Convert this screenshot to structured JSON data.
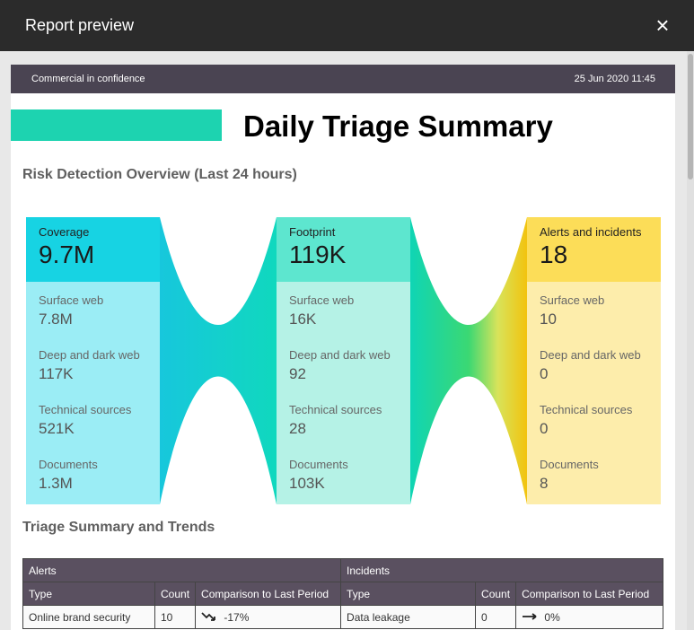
{
  "window": {
    "title": "Report preview",
    "close_icon": "close-icon"
  },
  "report": {
    "confidential": "Commercial in confidence",
    "date": "25 Jun 2020 11:45",
    "title": "Daily Triage Summary",
    "accent_color": "#1dd3b0"
  },
  "overview": {
    "title": "Risk Detection Overview (Last 24 hours)",
    "columns": [
      {
        "label": "Coverage",
        "value": "9.7M",
        "header_color": "#17d3e3",
        "body_color": "#9bedf5",
        "rows": [
          {
            "label": "Surface web",
            "value": "7.8M"
          },
          {
            "label": "Deep and dark web",
            "value": "117K"
          },
          {
            "label": "Technical sources",
            "value": "521K"
          },
          {
            "label": "Documents",
            "value": "1.3M"
          }
        ]
      },
      {
        "label": "Footprint",
        "value": "119K",
        "header_color": "#5de6cf",
        "body_color": "#b5f2e6",
        "rows": [
          {
            "label": "Surface web",
            "value": "16K"
          },
          {
            "label": "Deep and dark web",
            "value": "92"
          },
          {
            "label": "Technical sources",
            "value": "28"
          },
          {
            "label": "Documents",
            "value": "103K"
          }
        ]
      },
      {
        "label": "Alerts and incidents",
        "value": "18",
        "header_color": "#fcdd58",
        "body_color": "#fdedab",
        "rows": [
          {
            "label": "Surface web",
            "value": "10"
          },
          {
            "label": "Deep and dark web",
            "value": "0"
          },
          {
            "label": "Technical sources",
            "value": "0"
          },
          {
            "label": "Documents",
            "value": "8"
          }
        ]
      }
    ]
  },
  "triage": {
    "title": "Triage Summary and Trends",
    "alerts_header": "Alerts",
    "incidents_header": "Incidents",
    "col_type": "Type",
    "col_count": "Count",
    "col_comparison": "Comparison to Last Period",
    "rows": [
      {
        "alert_type": "Online brand security",
        "alert_count": "10",
        "alert_trend": "-17%",
        "alert_trend_icon": "trend-down-icon",
        "incident_type": "Data leakage",
        "incident_count": "0",
        "incident_trend": "0%",
        "incident_trend_icon": "trend-flat-icon"
      }
    ]
  }
}
